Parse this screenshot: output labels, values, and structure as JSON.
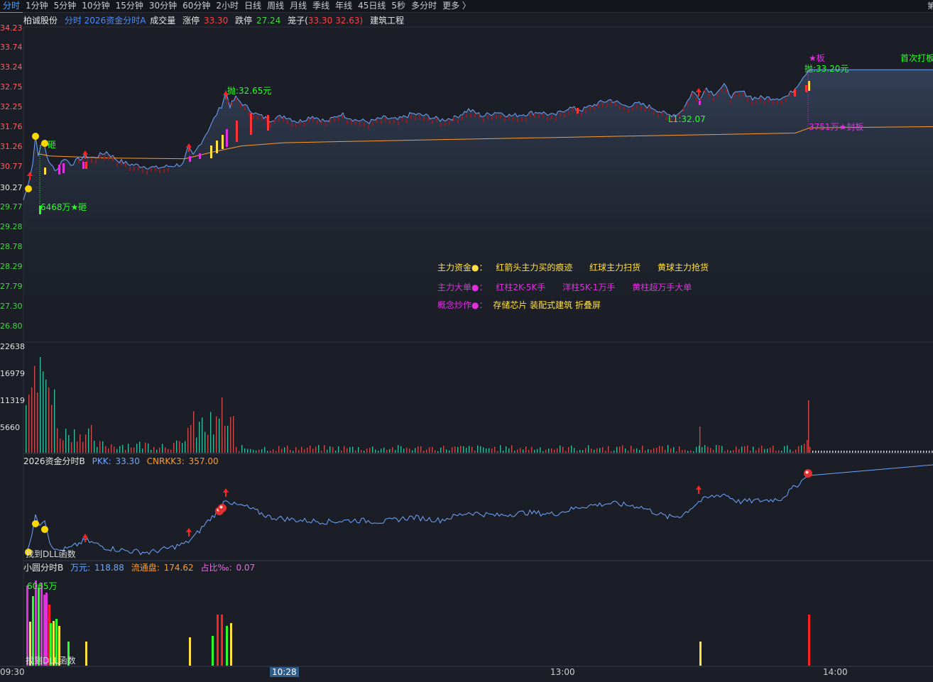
{
  "tabs": [
    "分时",
    "1分钟",
    "5分钟",
    "10分钟",
    "15分钟",
    "30分钟",
    "60分钟",
    "2小时",
    "日线",
    "周线",
    "月线",
    "季线",
    "年线",
    "45日线",
    "5秒",
    "多分时",
    "更多 〉"
  ],
  "tab_right": "第",
  "main_header": {
    "stock_name": "柏诚股份",
    "indicator": "分时 2026资金分时A",
    "volume_label": "成交量",
    "limit_up_label": "涨停",
    "limit_up_value": "33.30",
    "limit_down_label": "跌停",
    "limit_down_value": "27.24",
    "cage_label": "笼子(",
    "cage_high": "33.30",
    "cage_low": "32.63)",
    "sector": "建筑工程"
  },
  "price_axis": [
    "34.23",
    "33.74",
    "33.24",
    "32.75",
    "32.25",
    "31.76",
    "31.26",
    "30.77",
    "30.27",
    "29.77",
    "29.28",
    "28.78",
    "28.29",
    "27.79",
    "27.30",
    "26.80"
  ],
  "volume_axis": [
    "22638",
    "16979",
    "11319",
    "5660"
  ],
  "annotations": {
    "throw_1": "抛:32.65元",
    "throw_2": "抛:33.20元",
    "smash_small": "砸",
    "smash_volume": "6468万★砸",
    "low_point": "L1:32.07",
    "star_board": "★板",
    "first_board": "首次打板",
    "seal_volume": "3751万★封板"
  },
  "legend": {
    "row1_label": "主力资金●：",
    "row1_items": [
      "红箭头主力买的痕迹",
      "红球主力扫货",
      "黄球主力抢货"
    ],
    "row2_label": "主力大单●：",
    "row2_items": [
      "红柱2K-5K手",
      "洋柱5K-1万手",
      "黄柱超万手大单"
    ],
    "row3_label": "概念炒作●：",
    "row3_items": "存储芯片 装配式建筑 折叠屏"
  },
  "panel_b": {
    "title": "2026资金分时B",
    "pkk_label": "PKK:",
    "pkk_value": "33.30",
    "cnr_label": "CNRKK3:",
    "cnr_value": "357.00",
    "footer_text": "找到DLL函数"
  },
  "panel_c": {
    "title": "小圆分时B",
    "wan_label": "万元:",
    "wan_value": "118.88",
    "float_label": "流通盘:",
    "float_value": "174.62",
    "ratio_label": "占比‰:",
    "ratio_value": "0.07",
    "peak_label": "6065万",
    "footer_text": "找到DLL函数"
  },
  "time_axis": [
    "09:30",
    "10:28",
    "13:00",
    "14:00"
  ],
  "colors": {
    "price_line": "#6ea6ff",
    "avg_line": "#ff9a2a",
    "up": "#ff3535",
    "down": "#3ad6b0",
    "magenta": "#e030e0",
    "yellow": "#ffe040",
    "green": "#2aff2a"
  }
}
